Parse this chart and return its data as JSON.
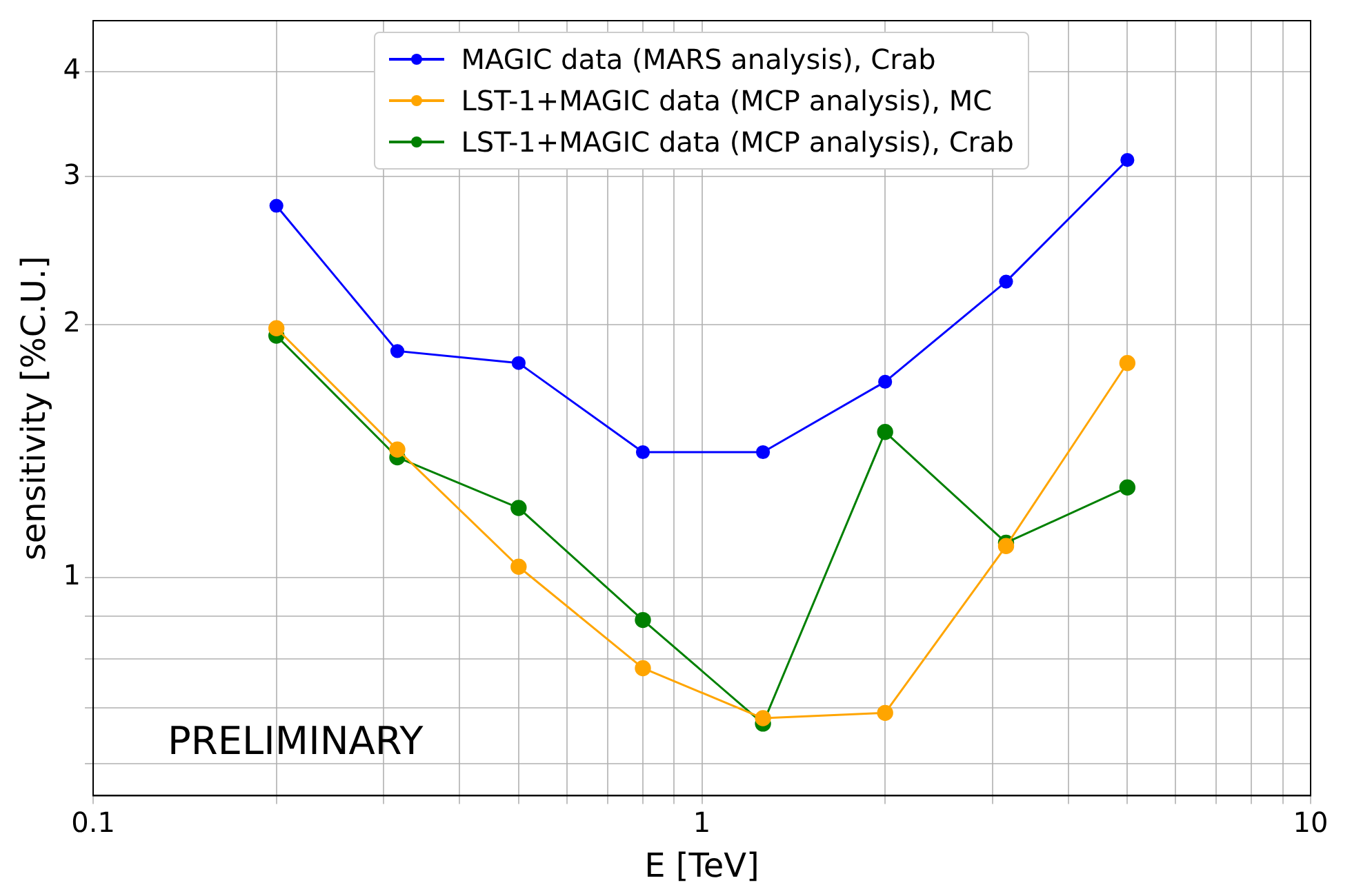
{
  "chart_data": {
    "type": "line",
    "xlabel": "E [TeV]",
    "ylabel": "sensitivity [%C.U.]",
    "log": "xy",
    "grid": true,
    "legend": "top",
    "marker": "circle",
    "line_style": "solid",
    "xlim": [
      0.1,
      10
    ],
    "ylim": [
      0.55,
      4.6
    ],
    "xticks": [
      0.1,
      {
        "value": 0.2,
        "label": null
      },
      {
        "value": 0.3,
        "label": null
      },
      {
        "value": 0.4,
        "label": null
      },
      {
        "value": 0.5,
        "label": null
      },
      {
        "value": 0.6,
        "label": null
      },
      {
        "value": 0.7,
        "label": null
      },
      {
        "value": 0.8,
        "label": null
      },
      {
        "value": 0.9,
        "label": null
      },
      1,
      {
        "value": 2,
        "label": null
      },
      {
        "value": 3,
        "label": null
      },
      {
        "value": 4,
        "label": null
      },
      {
        "value": 5,
        "label": null
      },
      {
        "value": 6,
        "label": null
      },
      {
        "value": 7,
        "label": null
      },
      {
        "value": 8,
        "label": null
      },
      {
        "value": 9,
        "label": null
      },
      10
    ],
    "yticks": [
      {
        "value": 0.6,
        "label": null
      },
      {
        "value": 0.7,
        "label": null
      },
      {
        "value": 0.8,
        "label": null
      },
      {
        "value": 0.9,
        "label": null
      },
      1,
      2,
      3,
      4
    ],
    "x": [
      0.2,
      0.316,
      0.5,
      0.8,
      1.26,
      2,
      3.16,
      5
    ],
    "series": [
      {
        "name": "MAGIC data (MARS analysis), Crab",
        "color": "#0000ff",
        "values": [
          2.77,
          1.86,
          1.8,
          1.41,
          1.41,
          1.71,
          2.25,
          3.14
        ]
      },
      {
        "name": "LST-1+MAGIC data (MCP analysis), MC",
        "color": "#ffa500",
        "values": [
          1.98,
          1.42,
          1.03,
          0.78,
          0.68,
          0.69,
          1.09,
          1.8
        ]
      },
      {
        "name": "LST-1+MAGIC data (MCP analysis), Crab",
        "color": "#008000",
        "values": [
          1.94,
          1.39,
          1.21,
          0.89,
          0.67,
          1.49,
          1.1,
          1.28
        ]
      }
    ],
    "annotations": [
      "PRELIMINARY"
    ]
  }
}
